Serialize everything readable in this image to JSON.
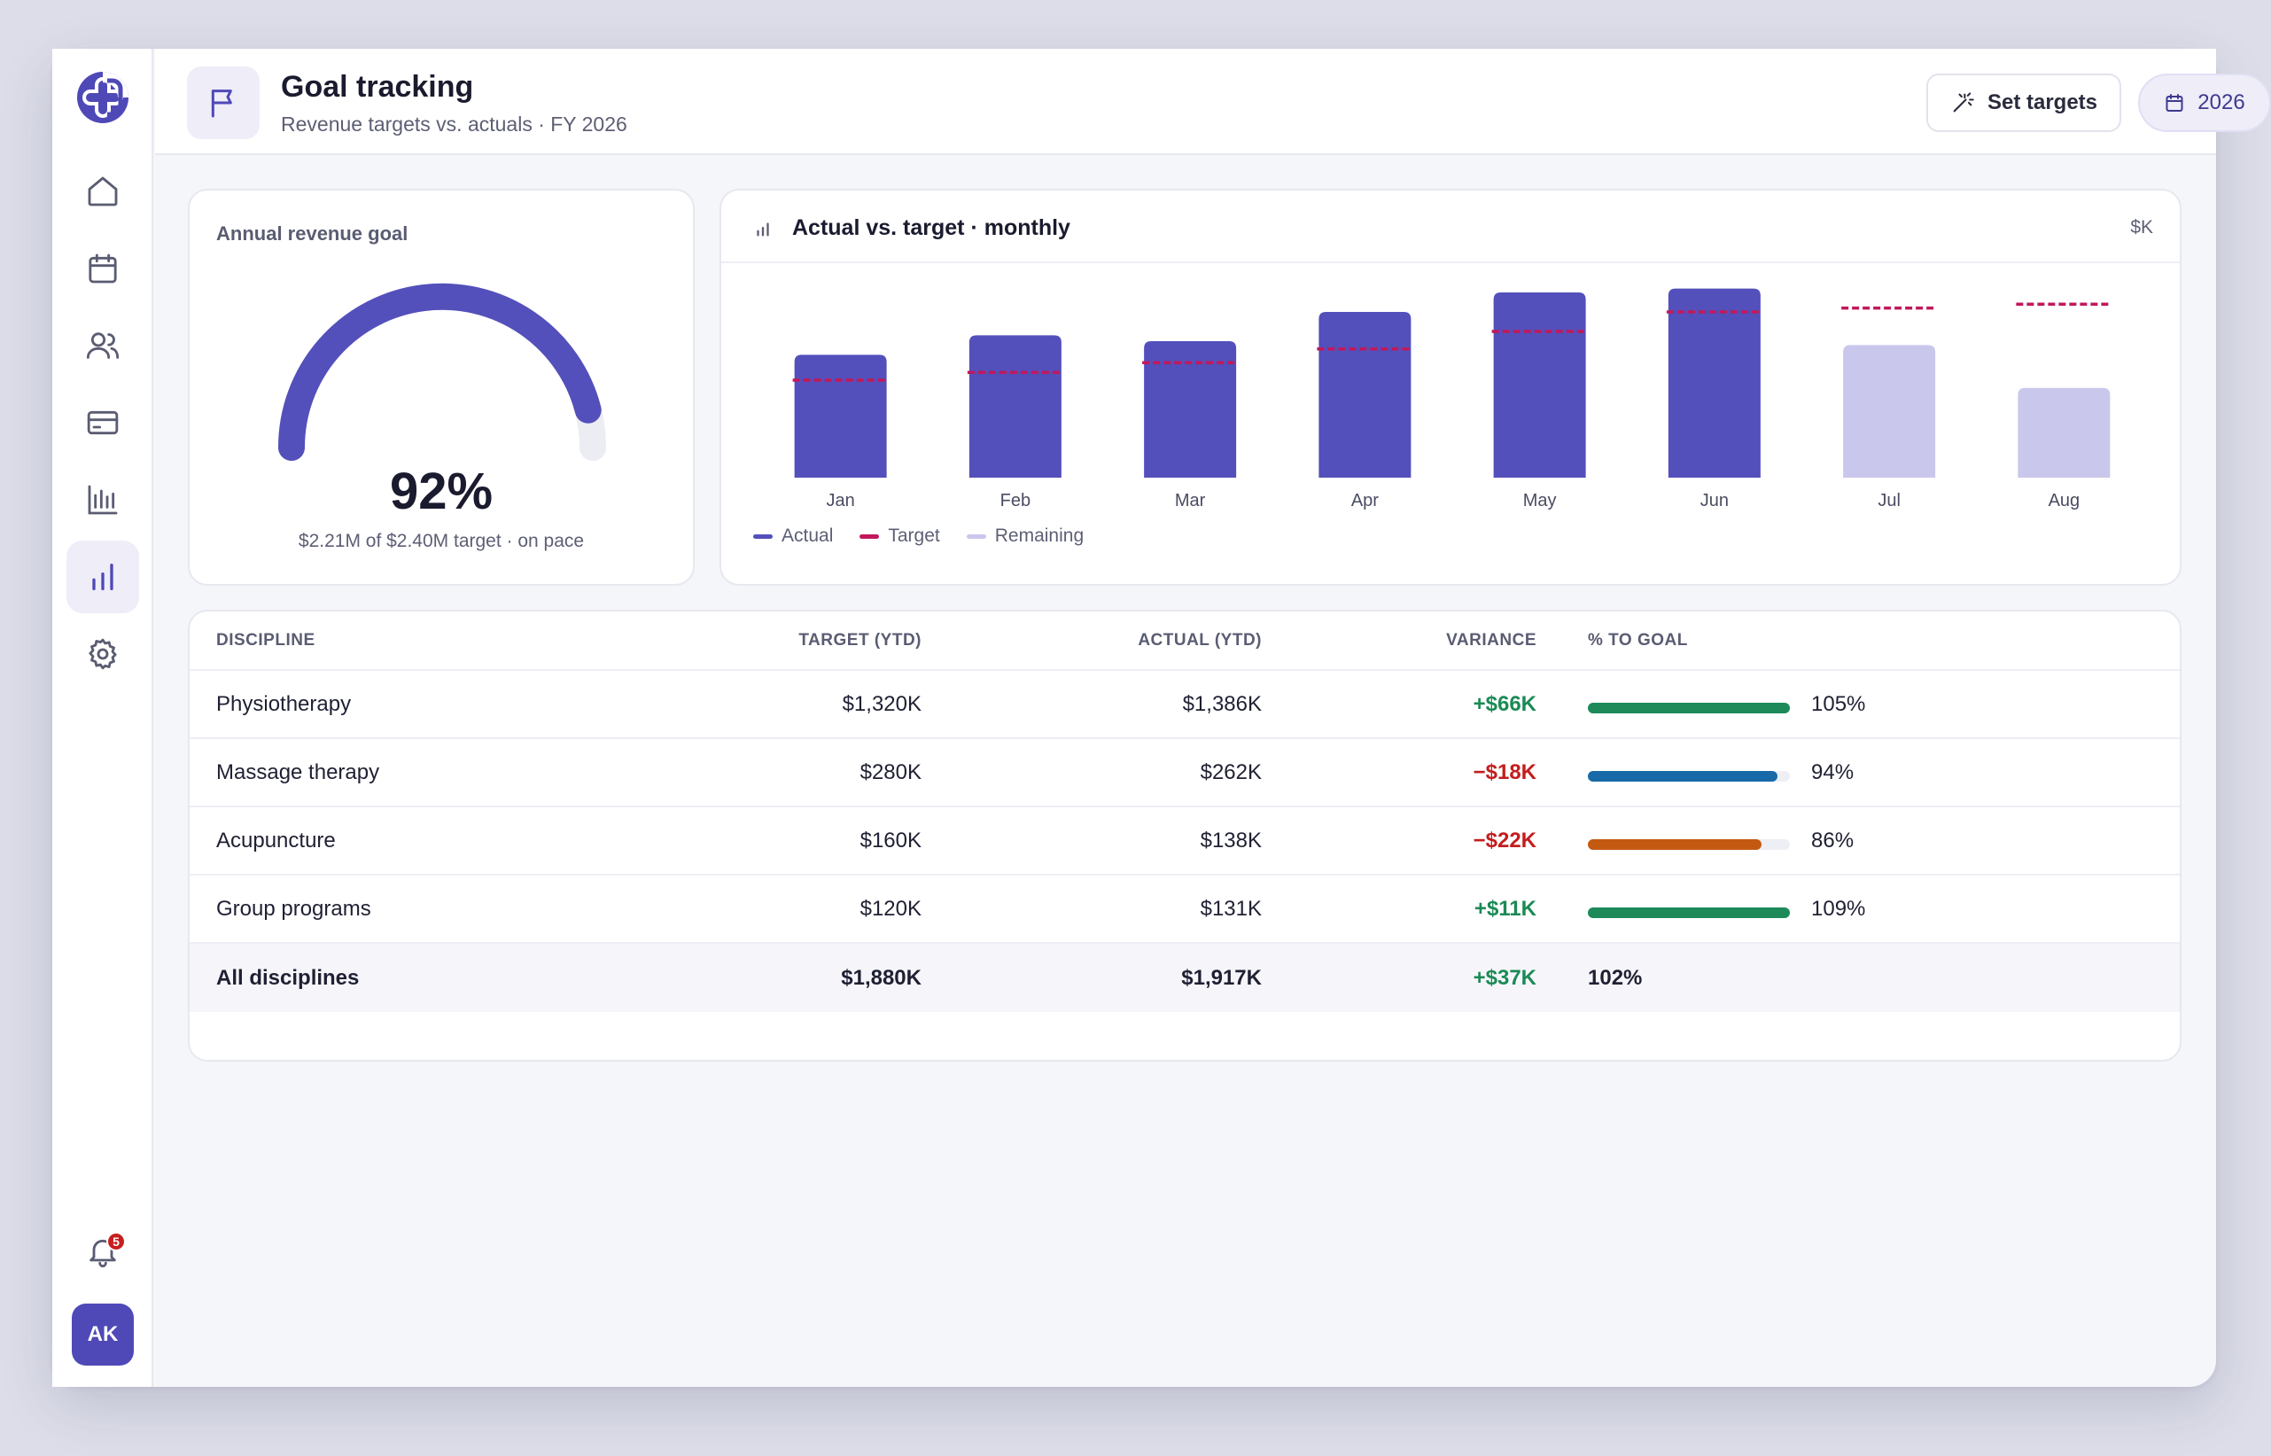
{
  "header": {
    "title": "Goal tracking",
    "subtitle": "Revenue targets vs. actuals · FY 2026",
    "set_targets_label": "Set targets",
    "year_label": "2026"
  },
  "sidebar": {
    "items": [
      {
        "icon": "home-icon"
      },
      {
        "icon": "calendar-icon"
      },
      {
        "icon": "users-icon"
      },
      {
        "icon": "credit-card-icon"
      },
      {
        "icon": "reports-icon"
      },
      {
        "icon": "bar-chart-icon",
        "active": true
      },
      {
        "icon": "gear-icon"
      }
    ],
    "notification_count": "5",
    "avatar_initials": "AK"
  },
  "goal": {
    "title": "Annual revenue goal",
    "percent_value": 92,
    "percent_label": "92%",
    "caption": "$2.21M of $2.40M target · on pace"
  },
  "chart_data": {
    "type": "bar",
    "title": "Actual vs. target · monthly",
    "unit": "$K",
    "categories": [
      "Jan",
      "Feb",
      "Mar",
      "Apr",
      "May",
      "Jun",
      "Jul",
      "Aug"
    ],
    "series": [
      {
        "name": "Actual",
        "values": [
          63,
          73,
          70,
          85,
          95,
          97,
          null,
          null
        ],
        "color": "#5350bb"
      },
      {
        "name": "Target",
        "values": [
          50,
          54,
          59,
          66,
          75,
          85,
          87,
          89
        ],
        "color": "#c2185b"
      },
      {
        "name": "Remaining",
        "values": [
          null,
          null,
          null,
          null,
          null,
          null,
          68,
          46
        ],
        "color": "#cac7ec"
      }
    ],
    "ylim": [
      0,
      100
    ],
    "legend": "bottom-left",
    "grid": false
  },
  "table": {
    "headers": {
      "discipline": "DISCIPLINE",
      "target": "TARGET (YTD)",
      "actual": "ACTUAL (YTD)",
      "variance": "VARIANCE",
      "goal": "% TO GOAL"
    },
    "rows": [
      {
        "discipline": "Physiotherapy",
        "target": "$1,320K",
        "actual": "$1,386K",
        "variance": "+$66K",
        "variance_sign": "pos",
        "progress": 1.0,
        "percent": "105%",
        "color": "#1e8a5a"
      },
      {
        "discipline": "Massage therapy",
        "target": "$280K",
        "actual": "$262K",
        "variance": "−$18K",
        "variance_sign": "neg",
        "progress": 0.94,
        "percent": "94%",
        "color": "#1769a8"
      },
      {
        "discipline": "Acupuncture",
        "target": "$160K",
        "actual": "$138K",
        "variance": "−$22K",
        "variance_sign": "neg",
        "progress": 0.86,
        "percent": "86%",
        "color": "#c45a12"
      },
      {
        "discipline": "Group programs",
        "target": "$120K",
        "actual": "$131K",
        "variance": "+$11K",
        "variance_sign": "pos",
        "progress": 1.0,
        "percent": "109%",
        "color": "#1e8a5a"
      }
    ],
    "total": {
      "discipline": "All disciplines",
      "target": "$1,880K",
      "actual": "$1,917K",
      "variance": "+$37K",
      "percent": "102%"
    }
  }
}
